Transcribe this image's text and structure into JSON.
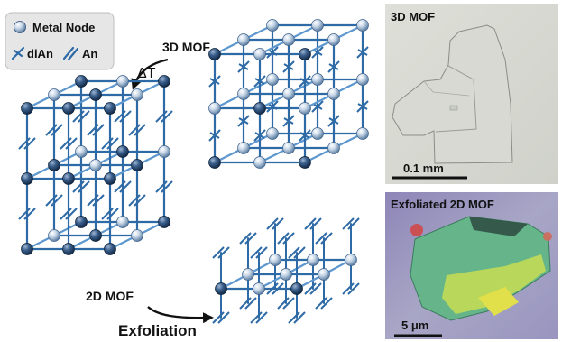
{
  "legend": {
    "node_label": "Metal Node",
    "dian_label": "diAn",
    "an_label": "An"
  },
  "labels": {
    "mof3d": "3D MOF",
    "delta_t": "ΔT",
    "mof2d": "2D MOF",
    "exfoliation": "Exfoliation"
  },
  "micrographs": {
    "top": {
      "title": "3D MOF",
      "scale": "0.1 mm"
    },
    "bottom": {
      "title": "Exfoliated 2D MOF",
      "scale": "5 μm"
    }
  },
  "colors": {
    "bond": "#2e6aa6",
    "bond_light": "#5d97cf",
    "node_light": "#dfe8f2",
    "node_dark": "#1f3f66",
    "legend_bg": "#e6e6e6"
  }
}
